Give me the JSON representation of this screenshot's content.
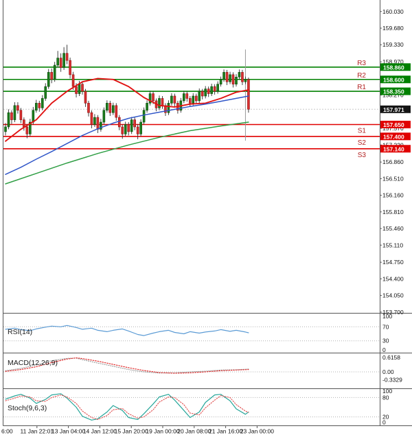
{
  "chart_data": {
    "type": "candlestick",
    "ylim": [
      153.75,
      160.22
    ],
    "grid": false,
    "legend": "none",
    "price_axis_ticks": [
      "160.030",
      "159.680",
      "159.330",
      "158.970",
      "158.270",
      "157.570",
      "157.220",
      "156.860",
      "156.510",
      "156.160",
      "155.810",
      "155.460",
      "155.110",
      "154.750",
      "154.400",
      "154.050",
      "153.700"
    ],
    "current_price": "157.971",
    "time_axis_labels": [
      "6:00",
      "11 Jan 22:01",
      "13 Jan 04:00",
      "14 Jan 12:00",
      "15 Jan 20:00",
      "19 Jan 00:00",
      "20 Jan 08:00",
      "21 Jan 16:00",
      "23 Jan 00:00"
    ],
    "pivot_levels": {
      "resistance": [
        {
          "label": "R3",
          "value": 158.86
        },
        {
          "label": "R2",
          "value": 158.6
        },
        {
          "label": "R1",
          "value": 158.35
        }
      ],
      "support": [
        {
          "label": "S1",
          "value": 157.65
        },
        {
          "label": "S2",
          "value": 157.4
        },
        {
          "label": "S3",
          "value": 157.14
        }
      ]
    },
    "candles_ohlc": [
      [
        157.5,
        157.68,
        157.42,
        157.6
      ],
      [
        157.6,
        157.97,
        157.55,
        157.9
      ],
      [
        157.9,
        157.95,
        157.66,
        157.75
      ],
      [
        157.75,
        158.12,
        157.7,
        158.05
      ],
      [
        158.05,
        158.12,
        157.88,
        157.95
      ],
      [
        157.95,
        158.0,
        157.68,
        157.75
      ],
      [
        157.75,
        157.8,
        157.52,
        157.6
      ],
      [
        157.6,
        157.66,
        157.36,
        157.45
      ],
      [
        157.45,
        157.77,
        157.4,
        157.7
      ],
      [
        157.7,
        158.02,
        157.65,
        157.95
      ],
      [
        157.95,
        158.17,
        157.9,
        158.1
      ],
      [
        158.1,
        158.15,
        157.92,
        158.0
      ],
      [
        158.0,
        158.27,
        157.95,
        158.2
      ],
      [
        158.2,
        158.52,
        158.15,
        158.45
      ],
      [
        158.45,
        158.82,
        158.4,
        158.75
      ],
      [
        158.75,
        158.83,
        158.52,
        158.6
      ],
      [
        158.6,
        158.97,
        158.55,
        158.9
      ],
      [
        158.9,
        159.2,
        158.85,
        159.05
      ],
      [
        159.05,
        159.15,
        158.76,
        158.85
      ],
      [
        158.85,
        159.28,
        158.8,
        159.15
      ],
      [
        159.15,
        159.33,
        158.92,
        159.0
      ],
      [
        159.0,
        159.06,
        158.62,
        158.7
      ],
      [
        158.7,
        158.76,
        158.38,
        158.45
      ],
      [
        158.45,
        158.52,
        158.22,
        158.3
      ],
      [
        158.3,
        158.57,
        158.25,
        158.5
      ],
      [
        158.5,
        158.55,
        158.28,
        158.35
      ],
      [
        158.35,
        158.4,
        158.02,
        158.1
      ],
      [
        158.1,
        158.15,
        157.82,
        157.9
      ],
      [
        157.9,
        157.95,
        157.57,
        157.65
      ],
      [
        157.65,
        157.87,
        157.6,
        157.8
      ],
      [
        157.8,
        157.85,
        157.47,
        157.55
      ],
      [
        157.55,
        157.77,
        157.5,
        157.7
      ],
      [
        157.7,
        158.01,
        157.65,
        157.95
      ],
      [
        157.95,
        158.16,
        157.9,
        158.1
      ],
      [
        158.1,
        158.15,
        157.83,
        157.9
      ],
      [
        157.9,
        158.11,
        157.85,
        158.05
      ],
      [
        158.05,
        158.1,
        157.73,
        157.8
      ],
      [
        157.8,
        157.85,
        157.53,
        157.6
      ],
      [
        157.6,
        157.65,
        157.35,
        157.45
      ],
      [
        157.45,
        157.71,
        157.4,
        157.65
      ],
      [
        157.65,
        157.7,
        157.42,
        157.5
      ],
      [
        157.5,
        157.81,
        157.45,
        157.75
      ],
      [
        157.75,
        157.8,
        157.53,
        157.6
      ],
      [
        157.6,
        157.66,
        157.34,
        157.45
      ],
      [
        157.45,
        157.76,
        157.4,
        157.7
      ],
      [
        157.7,
        158.01,
        157.65,
        157.95
      ],
      [
        157.95,
        158.16,
        157.9,
        158.1
      ],
      [
        158.1,
        158.36,
        158.05,
        158.3
      ],
      [
        158.3,
        158.35,
        158.08,
        158.15
      ],
      [
        158.15,
        158.2,
        157.93,
        158.0
      ],
      [
        158.0,
        158.26,
        157.95,
        158.2
      ],
      [
        158.2,
        158.25,
        157.98,
        158.05
      ],
      [
        158.05,
        158.1,
        157.83,
        157.9
      ],
      [
        157.9,
        158.16,
        157.85,
        158.1
      ],
      [
        158.1,
        158.31,
        158.05,
        158.25
      ],
      [
        158.25,
        158.3,
        158.03,
        158.1
      ],
      [
        158.1,
        158.15,
        157.88,
        157.95
      ],
      [
        157.95,
        158.21,
        157.9,
        158.15
      ],
      [
        158.15,
        158.36,
        158.1,
        158.3
      ],
      [
        158.3,
        158.35,
        158.13,
        158.2
      ],
      [
        158.2,
        158.25,
        158.03,
        158.1
      ],
      [
        158.1,
        158.31,
        158.05,
        158.25
      ],
      [
        158.25,
        158.3,
        158.08,
        158.15
      ],
      [
        158.15,
        158.41,
        158.1,
        158.35
      ],
      [
        158.35,
        158.4,
        158.18,
        158.25
      ],
      [
        158.25,
        158.46,
        158.2,
        158.4
      ],
      [
        158.4,
        158.45,
        158.23,
        158.3
      ],
      [
        158.3,
        158.51,
        158.25,
        158.45
      ],
      [
        158.45,
        158.5,
        158.28,
        158.35
      ],
      [
        158.35,
        158.56,
        158.3,
        158.5
      ],
      [
        158.5,
        158.66,
        158.45,
        158.6
      ],
      [
        158.6,
        158.81,
        158.55,
        158.75
      ],
      [
        158.75,
        158.8,
        158.48,
        158.55
      ],
      [
        158.55,
        158.76,
        158.5,
        158.7
      ],
      [
        158.7,
        158.75,
        158.43,
        158.5
      ],
      [
        158.5,
        158.71,
        158.45,
        158.65
      ],
      [
        158.65,
        158.81,
        158.6,
        158.75
      ],
      [
        158.75,
        158.8,
        158.48,
        158.55
      ],
      [
        158.55,
        158.66,
        158.5,
        158.6
      ],
      [
        158.6,
        158.64,
        157.9,
        157.971
      ]
    ],
    "moving_averages": [
      {
        "name": "ma-fast",
        "color": "#e01212",
        "points": [
          [
            0,
            157.3
          ],
          [
            5,
            157.55
          ],
          [
            10,
            157.75
          ],
          [
            15,
            158.1
          ],
          [
            20,
            158.35
          ],
          [
            25,
            158.55
          ],
          [
            30,
            158.62
          ],
          [
            35,
            158.6
          ],
          [
            40,
            158.45
          ],
          [
            45,
            158.22
          ],
          [
            50,
            158.05
          ],
          [
            55,
            158.02
          ],
          [
            60,
            158.08
          ],
          [
            65,
            158.1
          ],
          [
            70,
            158.2
          ],
          [
            75,
            158.33
          ],
          [
            79,
            158.38
          ]
        ]
      },
      {
        "name": "ma-mid",
        "color": "#3056c8",
        "points": [
          [
            0,
            156.6
          ],
          [
            5,
            156.75
          ],
          [
            10,
            156.92
          ],
          [
            15,
            157.08
          ],
          [
            20,
            157.25
          ],
          [
            25,
            157.42
          ],
          [
            30,
            157.56
          ],
          [
            35,
            157.68
          ],
          [
            40,
            157.78
          ],
          [
            45,
            157.85
          ],
          [
            50,
            157.91
          ],
          [
            55,
            157.97
          ],
          [
            60,
            158.03
          ],
          [
            65,
            158.08
          ],
          [
            70,
            158.14
          ],
          [
            75,
            158.2
          ],
          [
            79,
            158.25
          ]
        ]
      },
      {
        "name": "ma-slow",
        "color": "#2f9e44",
        "points": [
          [
            0,
            156.4
          ],
          [
            10,
            156.62
          ],
          [
            20,
            156.84
          ],
          [
            30,
            157.04
          ],
          [
            40,
            157.22
          ],
          [
            50,
            157.38
          ],
          [
            60,
            157.52
          ],
          [
            70,
            157.62
          ],
          [
            79,
            157.7
          ]
        ]
      }
    ],
    "marker_line": {
      "bar": 78,
      "from": 159.23,
      "to": 157.31
    },
    "indicators": {
      "rsi": {
        "label": "RSI(14)",
        "axis_labels": [
          "100",
          "70",
          "30",
          "0"
        ],
        "dotted_levels": [
          70,
          30
        ],
        "color": "#5b9bd5",
        "points": [
          [
            0,
            63
          ],
          [
            3,
            66
          ],
          [
            5,
            62
          ],
          [
            8,
            59
          ],
          [
            10,
            64
          ],
          [
            13,
            69
          ],
          [
            15,
            72
          ],
          [
            18,
            70
          ],
          [
            20,
            74
          ],
          [
            23,
            68
          ],
          [
            25,
            63
          ],
          [
            28,
            66
          ],
          [
            30,
            60
          ],
          [
            33,
            56
          ],
          [
            35,
            60
          ],
          [
            38,
            64
          ],
          [
            40,
            58
          ],
          [
            43,
            48
          ],
          [
            45,
            45
          ],
          [
            48,
            52
          ],
          [
            50,
            56
          ],
          [
            53,
            60
          ],
          [
            55,
            54
          ],
          [
            58,
            50
          ],
          [
            60,
            56
          ],
          [
            63,
            52
          ],
          [
            65,
            55
          ],
          [
            68,
            58
          ],
          [
            70,
            62
          ],
          [
            73,
            57
          ],
          [
            75,
            60
          ],
          [
            78,
            55
          ],
          [
            79,
            53
          ]
        ]
      },
      "macd": {
        "label": "MACD(12,26,9)",
        "axis_labels": [
          "0.6158",
          "0.00",
          "-0.3329"
        ],
        "macd_color": "#909090",
        "signal_color": "#e03030",
        "macd_points": [
          [
            0,
            0.05
          ],
          [
            5,
            0.15
          ],
          [
            10,
            0.3
          ],
          [
            15,
            0.48
          ],
          [
            20,
            0.58
          ],
          [
            23,
            0.59
          ],
          [
            25,
            0.52
          ],
          [
            30,
            0.38
          ],
          [
            35,
            0.24
          ],
          [
            40,
            0.1
          ],
          [
            45,
            0.0
          ],
          [
            50,
            -0.05
          ],
          [
            55,
            -0.04
          ],
          [
            60,
            0.0
          ],
          [
            65,
            0.03
          ],
          [
            70,
            0.08
          ],
          [
            75,
            0.09
          ],
          [
            79,
            0.12
          ]
        ],
        "signal_points": [
          [
            0,
            0.02
          ],
          [
            5,
            0.1
          ],
          [
            10,
            0.22
          ],
          [
            15,
            0.4
          ],
          [
            20,
            0.55
          ],
          [
            23,
            0.6
          ],
          [
            25,
            0.57
          ],
          [
            30,
            0.46
          ],
          [
            35,
            0.32
          ],
          [
            40,
            0.18
          ],
          [
            45,
            0.06
          ],
          [
            50,
            -0.03
          ],
          [
            55,
            -0.06
          ],
          [
            60,
            -0.04
          ],
          [
            65,
            0.0
          ],
          [
            70,
            0.05
          ],
          [
            75,
            0.08
          ],
          [
            79,
            0.1
          ]
        ]
      },
      "stoch": {
        "label": "Stoch(9,6,3)",
        "axis_labels": [
          "100",
          "80",
          "20",
          "0"
        ],
        "dotted_levels": [
          80,
          20
        ],
        "k_color": "#26a69a",
        "d_color": "#e05050",
        "k_points": [
          [
            0,
            75
          ],
          [
            3,
            85
          ],
          [
            5,
            90
          ],
          [
            8,
            78
          ],
          [
            10,
            62
          ],
          [
            13,
            74
          ],
          [
            15,
            88
          ],
          [
            18,
            92
          ],
          [
            20,
            78
          ],
          [
            23,
            50
          ],
          [
            25,
            22
          ],
          [
            28,
            10
          ],
          [
            30,
            14
          ],
          [
            33,
            35
          ],
          [
            35,
            55
          ],
          [
            38,
            40
          ],
          [
            40,
            18
          ],
          [
            43,
            12
          ],
          [
            45,
            30
          ],
          [
            48,
            60
          ],
          [
            50,
            82
          ],
          [
            53,
            90
          ],
          [
            55,
            72
          ],
          [
            58,
            40
          ],
          [
            60,
            18
          ],
          [
            63,
            35
          ],
          [
            65,
            65
          ],
          [
            68,
            88
          ],
          [
            70,
            90
          ],
          [
            73,
            70
          ],
          [
            75,
            45
          ],
          [
            78,
            28
          ],
          [
            79,
            35
          ]
        ],
        "d_points": [
          [
            0,
            70
          ],
          [
            3,
            78
          ],
          [
            5,
            85
          ],
          [
            8,
            82
          ],
          [
            10,
            70
          ],
          [
            13,
            68
          ],
          [
            15,
            80
          ],
          [
            18,
            88
          ],
          [
            20,
            82
          ],
          [
            23,
            62
          ],
          [
            25,
            38
          ],
          [
            28,
            18
          ],
          [
            30,
            12
          ],
          [
            33,
            24
          ],
          [
            35,
            42
          ],
          [
            38,
            46
          ],
          [
            40,
            30
          ],
          [
            43,
            16
          ],
          [
            45,
            20
          ],
          [
            48,
            42
          ],
          [
            50,
            66
          ],
          [
            53,
            82
          ],
          [
            55,
            80
          ],
          [
            58,
            58
          ],
          [
            60,
            32
          ],
          [
            63,
            26
          ],
          [
            65,
            48
          ],
          [
            68,
            72
          ],
          [
            70,
            86
          ],
          [
            73,
            80
          ],
          [
            75,
            58
          ],
          [
            78,
            38
          ],
          [
            79,
            34
          ]
        ]
      }
    },
    "colors": {
      "up": "#1c7c1c",
      "up_stroke": "#0a4a0a",
      "down": "#d93030",
      "down_stroke": "#8f1010",
      "wick": "#2e2e2e",
      "resistance_line": "#008000",
      "support_line": "#e00000",
      "badge_green": "#008000",
      "badge_red": "#e00000",
      "badge_black": "#141414",
      "level_label": "#b22222",
      "axis_text": "#111111",
      "frame": "#555555",
      "dotted_level": "#b0b0b0",
      "current_price_line": "#c8c8c8",
      "marker": "#999999"
    }
  }
}
